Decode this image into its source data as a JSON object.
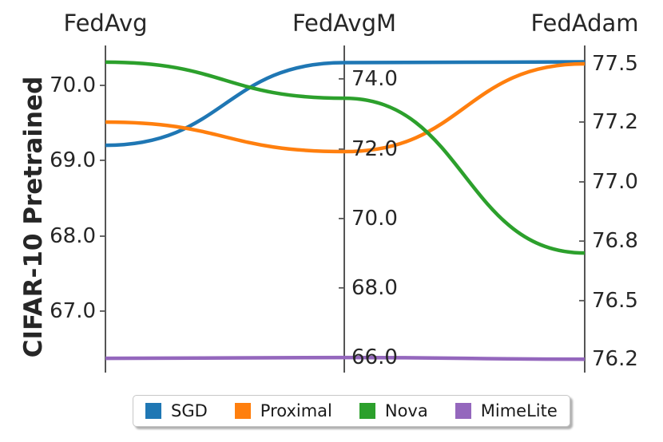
{
  "figure": {
    "ylabel": "CIFAR-10 Pretrained"
  },
  "colors": {
    "axis": "#555555",
    "text": "#262626",
    "legend_border": "#c7c7c7",
    "background": "#ffffff"
  },
  "chart_data": {
    "type": "line",
    "variant": "parallel_coordinates",
    "title": "",
    "ylabel": "CIFAR-10 Pretrained",
    "grid": false,
    "legend_position": "bottom",
    "axes": [
      {
        "name": "FedAvg",
        "label_side": "left",
        "ticks": [
          {
            "label": "70.0",
            "value": 70.0,
            "pos": 0.122
          },
          {
            "label": "69.0",
            "value": 69.0,
            "pos": 0.351
          },
          {
            "label": "68.0",
            "value": 68.0,
            "pos": 0.583
          },
          {
            "label": "67.0",
            "value": 67.0,
            "pos": 0.812
          }
        ]
      },
      {
        "name": "FedAvgM",
        "label_side": "right",
        "ticks": [
          {
            "label": "74.0",
            "value": 74.0,
            "pos": 0.102
          },
          {
            "label": "72.0",
            "value": 72.0,
            "pos": 0.317
          },
          {
            "label": "70.0",
            "value": 70.0,
            "pos": 0.529
          },
          {
            "label": "68.0",
            "value": 68.0,
            "pos": 0.741
          },
          {
            "label": "66.0",
            "value": 66.0,
            "pos": 0.954
          }
        ]
      },
      {
        "name": "FedAdam",
        "label_side": "right",
        "ticks": [
          {
            "label": "77.5",
            "value": 77.5,
            "pos": 0.056
          },
          {
            "label": "77.2",
            "value": 77.2,
            "pos": 0.234
          },
          {
            "label": "77.0",
            "value": 77.0,
            "pos": 0.417
          },
          {
            "label": "76.8",
            "value": 76.8,
            "pos": 0.598
          },
          {
            "label": "76.5",
            "value": 76.5,
            "pos": 0.78
          },
          {
            "label": "76.2",
            "value": 76.2,
            "pos": 0.959
          }
        ]
      }
    ],
    "series": [
      {
        "name": "SGD",
        "color": "#1f77b4",
        "values": [
          69.2,
          74.46,
          77.51
        ]
      },
      {
        "name": "Proximal",
        "color": "#ff7f0e",
        "values": [
          69.51,
          71.93,
          77.5
        ]
      },
      {
        "name": "Nova",
        "color": "#2ca02c",
        "values": [
          70.31,
          73.45,
          76.74
        ]
      },
      {
        "name": "MimeLite",
        "color": "#9467bd",
        "values": [
          66.37,
          66.0,
          76.2
        ]
      }
    ]
  }
}
